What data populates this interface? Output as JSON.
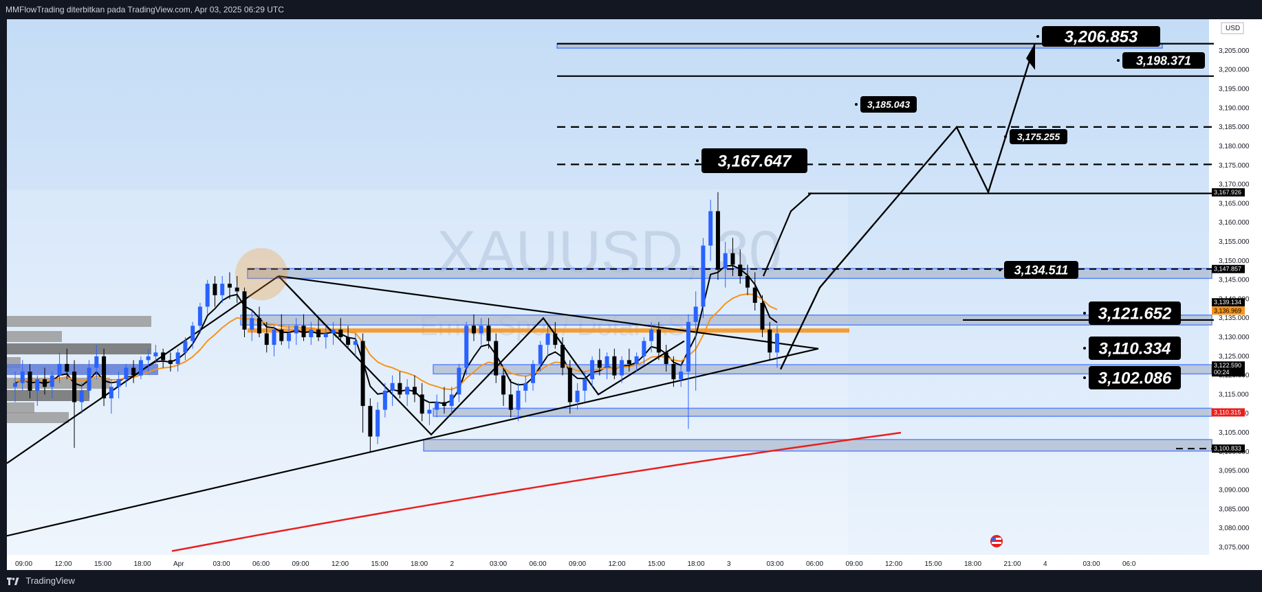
{
  "header": {
    "attribution": "MMFlowTrading diterbitkan pada TradingView.com, Apr 03, 2025 06:29 UTC"
  },
  "footer": {
    "brand": "TradingView"
  },
  "watermark": {
    "symbol": "XAUUSD, 30",
    "description": "Emas Spot / Dolar AS"
  },
  "currency": "USD",
  "colors": {
    "blue_candle": "#2962ff",
    "black_candle": "#000000",
    "ema_fast": "#000000",
    "ema_mid": "#f7931a",
    "ema_slow": "#e91e1e",
    "zone_fill": "#b0bcd0",
    "zone_border": "#2962ff"
  },
  "chart_data": {
    "type": "candlestick",
    "symbol": "XAUUSD",
    "timeframe": "30",
    "ylim": [
      3073,
      3212
    ],
    "y_ticks": [
      3075,
      3080,
      3085,
      3090,
      3095,
      3100,
      3105,
      3110,
      3115,
      3120,
      3125,
      3130,
      3135,
      3140,
      3145,
      3150,
      3155,
      3160,
      3165,
      3170,
      3175,
      3180,
      3185,
      3190,
      3195,
      3200,
      3205
    ],
    "x_tick_labels": [
      "09:00",
      "12:00",
      "15:00",
      "18:00",
      "Apr",
      "03:00",
      "06:00",
      "09:00",
      "12:00",
      "15:00",
      "18:00",
      "2",
      "03:00",
      "06:00",
      "09:00",
      "12:00",
      "15:00",
      "18:00",
      "3",
      "03:00",
      "06:00",
      "09:00",
      "12:00",
      "15:00",
      "18:00",
      "21:00",
      "4",
      "03:00",
      "06:0"
    ],
    "candles": [
      [
        3117,
        3121,
        3113,
        3118
      ],
      [
        3118,
        3124,
        3116,
        3121
      ],
      [
        3121,
        3123,
        3114,
        3116
      ],
      [
        3116,
        3120,
        3112,
        3119
      ],
      [
        3119,
        3122,
        3115,
        3117
      ],
      [
        3117,
        3121,
        3114,
        3120
      ],
      [
        3120,
        3126,
        3118,
        3123
      ],
      [
        3123,
        3127,
        3119,
        3121
      ],
      [
        3121,
        3124,
        3101,
        3113
      ],
      [
        3113,
        3118,
        3110,
        3116
      ],
      [
        3116,
        3124,
        3114,
        3122
      ],
      [
        3122,
        3128,
        3119,
        3125
      ],
      [
        3125,
        3127,
        3112,
        3114
      ],
      [
        3114,
        3119,
        3110,
        3117
      ],
      [
        3117,
        3121,
        3114,
        3119
      ],
      [
        3119,
        3123,
        3117,
        3122
      ],
      [
        3122,
        3124,
        3118,
        3120
      ],
      [
        3120,
        3125,
        3119,
        3124
      ],
      [
        3124,
        3127,
        3121,
        3125
      ],
      [
        3125,
        3128,
        3123,
        3126
      ],
      [
        3126,
        3127,
        3122,
        3124
      ],
      [
        3124,
        3126,
        3121,
        3123
      ],
      [
        3123,
        3127,
        3121,
        3126
      ],
      [
        3126,
        3130,
        3124,
        3129
      ],
      [
        3129,
        3134,
        3127,
        3133
      ],
      [
        3133,
        3139,
        3131,
        3138
      ],
      [
        3138,
        3145,
        3136,
        3144
      ],
      [
        3144,
        3146,
        3138,
        3141
      ],
      [
        3141,
        3146,
        3139,
        3144
      ],
      [
        3144,
        3147,
        3140,
        3143
      ],
      [
        3143,
        3146,
        3139,
        3142
      ],
      [
        3142,
        3143,
        3130,
        3132
      ],
      [
        3132,
        3137,
        3129,
        3135
      ],
      [
        3135,
        3138,
        3130,
        3131
      ],
      [
        3131,
        3134,
        3126,
        3128
      ],
      [
        3128,
        3133,
        3125,
        3132
      ],
      [
        3132,
        3136,
        3128,
        3129
      ],
      [
        3129,
        3133,
        3127,
        3131
      ],
      [
        3131,
        3135,
        3128,
        3133
      ],
      [
        3133,
        3136,
        3129,
        3130
      ],
      [
        3130,
        3134,
        3128,
        3132
      ],
      [
        3132,
        3135,
        3129,
        3130
      ],
      [
        3130,
        3133,
        3127,
        3131
      ],
      [
        3131,
        3134,
        3128,
        3132
      ],
      [
        3132,
        3135,
        3129,
        3130
      ],
      [
        3130,
        3133,
        3127,
        3128
      ],
      [
        3128,
        3131,
        3125,
        3129
      ],
      [
        3129,
        3131,
        3105,
        3112
      ],
      [
        3112,
        3114,
        3100,
        3104
      ],
      [
        3104,
        3113,
        3102,
        3111
      ],
      [
        3111,
        3118,
        3109,
        3116
      ],
      [
        3116,
        3120,
        3112,
        3118
      ],
      [
        3118,
        3121,
        3114,
        3115
      ],
      [
        3115,
        3119,
        3112,
        3117
      ],
      [
        3117,
        3120,
        3113,
        3115
      ],
      [
        3115,
        3118,
        3108,
        3110
      ],
      [
        3110,
        3113,
        3107,
        3111
      ],
      [
        3111,
        3115,
        3109,
        3113
      ],
      [
        3113,
        3117,
        3110,
        3112
      ],
      [
        3112,
        3117,
        3110,
        3115
      ],
      [
        3115,
        3123,
        3113,
        3122
      ],
      [
        3122,
        3134,
        3120,
        3133
      ],
      [
        3133,
        3136,
        3129,
        3131
      ],
      [
        3131,
        3135,
        3128,
        3133
      ],
      [
        3133,
        3135,
        3127,
        3129
      ],
      [
        3129,
        3131,
        3118,
        3120
      ],
      [
        3120,
        3122,
        3112,
        3115
      ],
      [
        3115,
        3119,
        3109,
        3111
      ],
      [
        3111,
        3118,
        3108,
        3116
      ],
      [
        3116,
        3120,
        3113,
        3118
      ],
      [
        3118,
        3124,
        3116,
        3123
      ],
      [
        3123,
        3129,
        3121,
        3128
      ],
      [
        3128,
        3133,
        3125,
        3131
      ],
      [
        3131,
        3134,
        3127,
        3128
      ],
      [
        3128,
        3130,
        3120,
        3122
      ],
      [
        3122,
        3124,
        3110,
        3113
      ],
      [
        3113,
        3118,
        3111,
        3116
      ],
      [
        3116,
        3121,
        3113,
        3119
      ],
      [
        3119,
        3125,
        3117,
        3124
      ],
      [
        3124,
        3127,
        3120,
        3122
      ],
      [
        3122,
        3126,
        3119,
        3125
      ],
      [
        3125,
        3127,
        3119,
        3120
      ],
      [
        3120,
        3125,
        3118,
        3124
      ],
      [
        3124,
        3127,
        3121,
        3123
      ],
      [
        3123,
        3126,
        3121,
        3125
      ],
      [
        3125,
        3130,
        3123,
        3129
      ],
      [
        3129,
        3134,
        3126,
        3132
      ],
      [
        3132,
        3134,
        3124,
        3126
      ],
      [
        3126,
        3128,
        3121,
        3123
      ],
      [
        3123,
        3125,
        3117,
        3119
      ],
      [
        3119,
        3123,
        3117,
        3121
      ],
      [
        3121,
        3136,
        3106,
        3134
      ],
      [
        3134,
        3142,
        3116,
        3138
      ],
      [
        3138,
        3156,
        3135,
        3154
      ],
      [
        3154,
        3166,
        3150,
        3163
      ],
      [
        3163,
        3168,
        3145,
        3148
      ],
      [
        3148,
        3155,
        3143,
        3152
      ],
      [
        3152,
        3156,
        3146,
        3149
      ],
      [
        3149,
        3153,
        3144,
        3146
      ],
      [
        3146,
        3149,
        3141,
        3143
      ],
      [
        3143,
        3147,
        3137,
        3139
      ],
      [
        3139,
        3141,
        3130,
        3132
      ],
      [
        3132,
        3134,
        3124,
        3126
      ],
      [
        3126,
        3133,
        3122,
        3131
      ]
    ],
    "moving_averages": [
      {
        "color": "#000000",
        "length": "fast"
      },
      {
        "color": "#f7931a",
        "length": "mid"
      },
      {
        "color": "#e91e1e",
        "length": "slow"
      }
    ],
    "levels": [
      {
        "value": 3206.853,
        "label": "3,206.853",
        "style": "solid"
      },
      {
        "value": 3198.371,
        "label": "3,198.371",
        "style": "solid"
      },
      {
        "value": 3185.043,
        "label": "3,185.043",
        "style": "dashed"
      },
      {
        "value": 3175.255,
        "label": "3,175.255",
        "style": "dashed"
      },
      {
        "value": 3167.647,
        "label": "3,167.647",
        "style": "solid"
      },
      {
        "value": 3134.511,
        "label": "3,134.511",
        "style": "solid"
      },
      {
        "value": 3121.652,
        "label": "3,121.652",
        "style": "zone"
      },
      {
        "value": 3110.334,
        "label": "3,110.334",
        "style": "zone"
      },
      {
        "value": 3102.086,
        "label": "3,102.086",
        "style": "zone"
      }
    ],
    "price_tags": [
      {
        "value": 3167.926,
        "label": "3,167.926",
        "bg": "#000000",
        "fg": "#ffffff"
      },
      {
        "value": 3147.857,
        "label": "3,147.857",
        "bg": "#000000",
        "fg": "#ffffff"
      },
      {
        "value": 3139.134,
        "label": "3,139.134",
        "bg": "#000000",
        "fg": "#ffffff"
      },
      {
        "value": 3136.969,
        "label": "3,136.969",
        "bg": "#f7931a",
        "fg": "#000000"
      },
      {
        "value": 3122.59,
        "label": "3,122.590",
        "sub": "00:24",
        "bg": "#000000",
        "fg": "#ffffff"
      },
      {
        "value": 3110.315,
        "label": "3,110.315",
        "bg": "#e91e1e",
        "fg": "#ffffff"
      },
      {
        "value": 3100.833,
        "label": "3,100.833",
        "bg": "#000000",
        "fg": "#ffffff"
      }
    ]
  }
}
